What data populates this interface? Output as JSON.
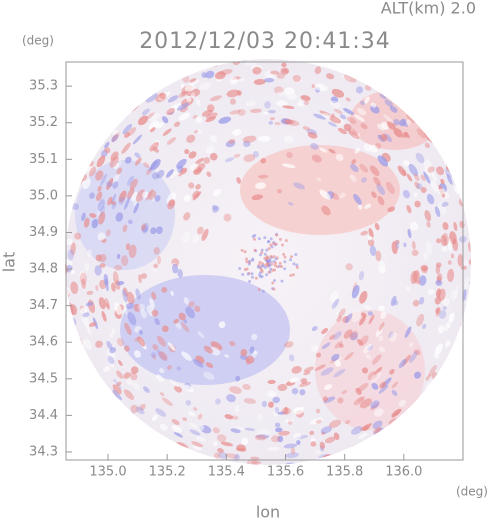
{
  "chart_data": {
    "type": "radar-map",
    "title": "2012/12/03 20:41:34",
    "annotation": "ALT(km) 2.0",
    "x_label": "lon",
    "y_label": "lat",
    "x_unit": "(deg)",
    "y_unit": "(deg)",
    "xlim": [
      134.858,
      136.2
    ],
    "ylim": [
      34.278,
      35.366
    ],
    "xticks": [
      {
        "value": 135,
        "label": "135.0"
      },
      135.2,
      135.4,
      135.6,
      135.8,
      {
        "value": 136,
        "label": "136.0"
      }
    ],
    "yticks": [
      {
        "value": 34.3,
        "label": "34.3"
      },
      34.4,
      34.5,
      34.6,
      34.7,
      34.8,
      34.9,
      {
        "value": 35,
        "label": "35.0"
      },
      35.1,
      35.2,
      35.3
    ]
  }
}
